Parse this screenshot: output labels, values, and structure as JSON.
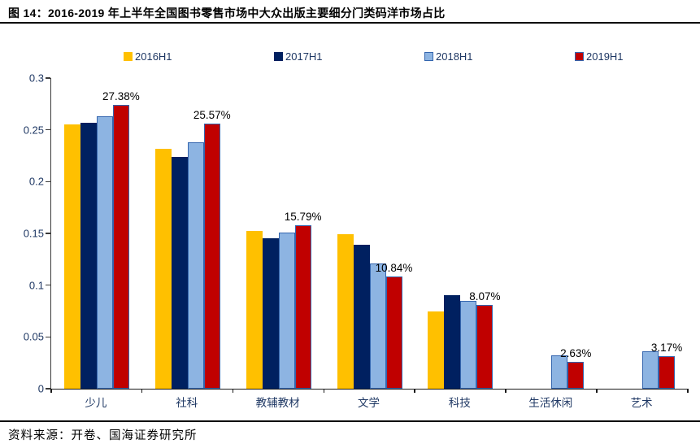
{
  "figure": {
    "title": "图 14：2016-2019 年上半年全国图书零售市场中大众出版主要细分门类码洋市场占比",
    "source": "资料来源：开卷、国海证券研究所"
  },
  "chart_data": {
    "type": "bar",
    "title": "2016-2019 年上半年全国图书零售市场中大众出版主要细分门类码洋市场占比",
    "categories": [
      "少儿",
      "社科",
      "教辅教材",
      "文学",
      "科技",
      "生活休闲",
      "艺术"
    ],
    "series": [
      {
        "name": "2016H1",
        "color": "#FFC000",
        "border": "",
        "values": [
          0.255,
          0.232,
          0.152,
          0.149,
          0.075,
          0,
          0
        ]
      },
      {
        "name": "2017H1",
        "color": "#002060",
        "border": "",
        "values": [
          0.257,
          0.224,
          0.145,
          0.139,
          0.09,
          0,
          0
        ]
      },
      {
        "name": "2018H1",
        "color": "#8DB4E2",
        "border": "#3465AE",
        "values": [
          0.263,
          0.238,
          0.151,
          0.121,
          0.085,
          0.032,
          0.036
        ]
      },
      {
        "name": "2019H1",
        "color": "#C00000",
        "border": "#3465AE",
        "values": [
          0.2738,
          0.2557,
          0.1579,
          0.1084,
          0.0807,
          0.0263,
          0.0317
        ]
      }
    ],
    "data_labels_series": "2019H1",
    "data_labels": [
      "27.38%",
      "25.57%",
      "15.79%",
      "10.84%",
      "8.07%",
      "2.63%",
      "3.17%"
    ],
    "xlabel": "",
    "ylabel": "",
    "ylim": [
      0,
      0.3
    ],
    "yticks": [
      "0",
      "0.05",
      "0.1",
      "0.15",
      "0.2",
      "0.25",
      "0.3"
    ],
    "grid": false,
    "legend_position": "top"
  },
  "colors": {
    "axis_label": "#1F3864",
    "data_label": "#000000",
    "axis_line": "#3a3a3a",
    "rule": "#000000"
  }
}
